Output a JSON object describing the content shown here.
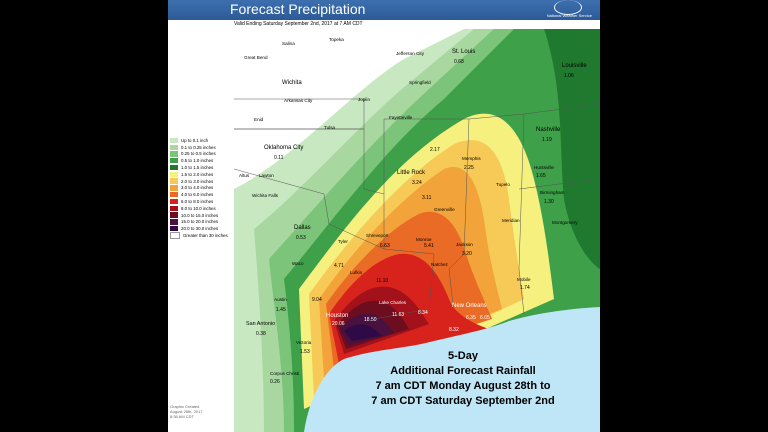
{
  "header": {
    "title": "Forecast Precipitation",
    "agency": "National Weather Service"
  },
  "subheader": "Valid Ending Saturday September 2nd, 2017 at 7 AM CDT",
  "legend": [
    {
      "label": "Up to 0.1 inch",
      "color": "#c7e8c1"
    },
    {
      "label": "0.1 to 0.25 inches",
      "color": "#a8d8a0"
    },
    {
      "label": "0.25 to 0.5 inches",
      "color": "#7cc479"
    },
    {
      "label": "0.5 to 1.0 inches",
      "color": "#3fa04a"
    },
    {
      "label": "1.0 to 1.5 inches",
      "color": "#1f7a2f"
    },
    {
      "label": "1.5 to 2.0 inches",
      "color": "#f6f07e"
    },
    {
      "label": "2.0 to 3.0 inches",
      "color": "#f7c957"
    },
    {
      "label": "3.0 to 4.0 inches",
      "color": "#f2a33a"
    },
    {
      "label": "4.0 to 6.0 inches",
      "color": "#ea6b26"
    },
    {
      "label": "6.0 to 8.0 inches",
      "color": "#d8231c"
    },
    {
      "label": "8.0 to 10.0 inches",
      "color": "#a3121a"
    },
    {
      "label": "10.0 to 15.0 inches",
      "color": "#6d0d20"
    },
    {
      "label": "15.0 to 20.0 inches",
      "color": "#48113e"
    },
    {
      "label": "20.0 to 30.0 inches",
      "color": "#2f0a46"
    },
    {
      "label": "Greater than 30 inches",
      "color": "#ffffff"
    }
  ],
  "credit": [
    "Graphic Created",
    "August 28th, 2017",
    "8:36 AM CDT"
  ],
  "cities": {
    "topeka": "Topeka",
    "salina": "Salina",
    "great_bend": "Great Bend",
    "wichita": "Wichita",
    "arkansas_city": "Arkansas City",
    "tulsa": "Tulsa",
    "enid": "Enid",
    "okc": "Oklahoma City",
    "lawton": "Lawton",
    "altus": "Altus",
    "wichita_falls": "Wichita Falls",
    "dallas": "Dallas",
    "waco": "Waco",
    "austin": "Austin",
    "san_antonio": "San Antonio",
    "victoria": "Victoria",
    "corpus": "Corpus Christi",
    "houston": "Houston",
    "lake_charles": "Lake Charles",
    "lufkin": "Lufkin",
    "tyler": "Tyler",
    "texarkana": "Texarkana",
    "shreveport": "Shreveport",
    "little_rock": "Little Rock",
    "monroe": "Monroe",
    "jackson": "Jackson",
    "natchez": "Natchez",
    "new_orleans": "New Orleans",
    "mobile": "Mobile",
    "memphis": "Memphis",
    "nashville": "Nashville",
    "louisville": "Louisville",
    "st_louis": "St. Louis",
    "jefferson": "Jefferson City",
    "joplin": "Joplin",
    "fayetteville": "Fayetteville",
    "springfield": "Springfield",
    "tupelo": "Tupelo",
    "birmingham": "Birmingham",
    "huntsville": "Huntsville",
    "montgomery": "Montgomery",
    "meridian": "Meridian",
    "greenville": "Greenville"
  },
  "values": {
    "v_houston": "20.06",
    "v_orange": "18.50",
    "v_lc": "11.63",
    "v_beau": "11.10",
    "v_no": "6.35",
    "v_no2": "6.05",
    "v_gc": "8.32",
    "v_lc2": "8.34",
    "v_bryan": "9.04",
    "v_tyler": "4.71",
    "v_shrev": "6.63",
    "v_monroe": "5.41",
    "v_lr": "3.24",
    "v_lr2": "3.11",
    "v_jack": "3.20",
    "v_mem": "2.17",
    "v_memb": "2.25",
    "v_nash": "1.19",
    "v_lou": "1.06",
    "v_stl": "0.68",
    "v_dal": "0.53",
    "v_okc": "0.11",
    "v_aus": "1.45",
    "v_sa": "0.38",
    "v_corp": "0.26",
    "v_vic": "1.53",
    "v_mob": "1.74",
    "v_bham": "1.30",
    "v_hunts": "1.65"
  },
  "note": {
    "line1": "5-Day",
    "line2": "Additional Forecast Rainfall",
    "line3": "7 am CDT Monday August 28th to",
    "line4": "7 am CDT Saturday September 2nd"
  }
}
